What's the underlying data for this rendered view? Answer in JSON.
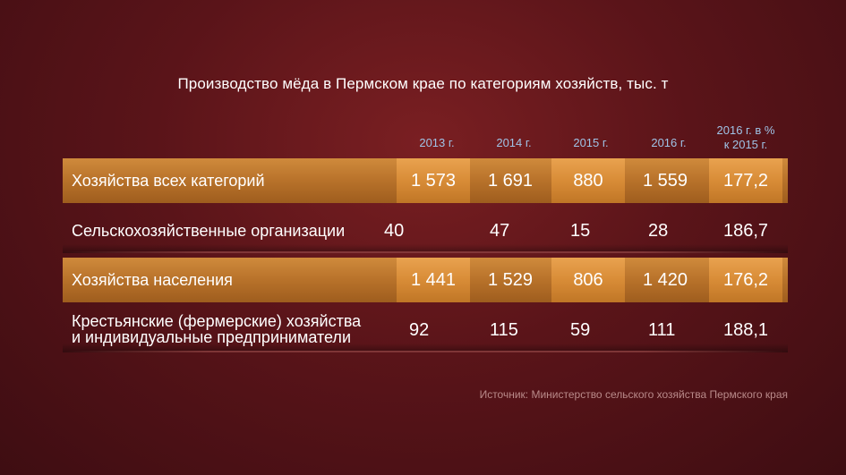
{
  "chart_data": {
    "type": "table",
    "title": "Производство мёда в Пермском крае по категориям хозяйств, тыс. т",
    "columns": [
      "2013 г.",
      "2014 г.",
      "2015 г.",
      "2016 г.",
      "2016 г. в %",
      "к 2015 г."
    ],
    "rows": [
      {
        "label": "Хозяйства всех категорий",
        "values": [
          "1 573",
          "1 691",
          "880",
          "1 559",
          "177,2"
        ],
        "highlight": true
      },
      {
        "label": "Сельскохозяйственные организации",
        "values": [
          "40",
          "47",
          "15",
          "28",
          "186,7"
        ],
        "highlight": false
      },
      {
        "label": "Хозяйства населения",
        "values": [
          "1 441",
          "1 529",
          "806",
          "1 420",
          "176,2"
        ],
        "highlight": true
      },
      {
        "label_line1": "Крестьянские (фермерские) хозяйства",
        "label_line2": "и индивидуальные предприниматели",
        "values": [
          "92",
          "115",
          "59",
          "111",
          "188,1"
        ],
        "highlight": false
      }
    ],
    "source": "Источник: Министерство сельского хозяйства Пермского края"
  },
  "colors": {
    "background": "#5a1419",
    "row_highlight": "#b8722a",
    "cell_highlight": "#d88c37",
    "header_text": "#9fc3e6"
  }
}
